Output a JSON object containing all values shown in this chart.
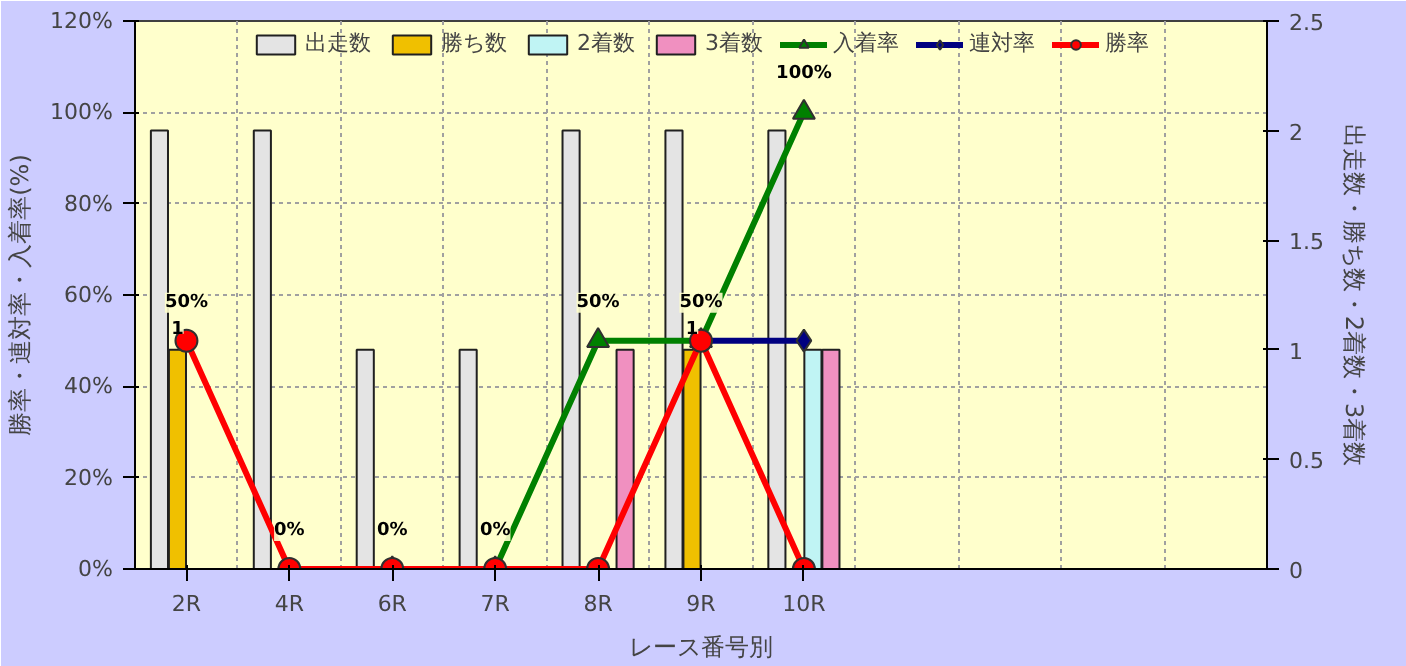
{
  "chart_data": {
    "type": "bar",
    "xlabel": "レース番号別",
    "ylabel": "勝率・連対率・入着率(%)",
    "y2label": "出走数・勝ち数・2着数・3着数",
    "categories": [
      "2R",
      "4R",
      "6R",
      "7R",
      "8R",
      "9R",
      "10R",
      null,
      null,
      null,
      null
    ],
    "ylim": [
      0,
      120
    ],
    "yticks": [
      {
        "value": 0,
        "label": "0%"
      },
      {
        "value": 20,
        "label": "20%"
      },
      {
        "value": 40,
        "label": "40%"
      },
      {
        "value": 60,
        "label": "60%"
      },
      {
        "value": 80,
        "label": "80%"
      },
      {
        "value": 100,
        "label": "100%"
      },
      {
        "value": 120,
        "label": "120%"
      }
    ],
    "y2lim": [
      0,
      2.5
    ],
    "y2ticks": [
      0,
      0.5,
      1,
      1.5,
      2,
      2.5
    ],
    "grid": true,
    "legend": "top",
    "series": [
      {
        "name": "出走数",
        "axis": "y2",
        "color": "#e4e4e4",
        "values": [
          2,
          2,
          1,
          1,
          2,
          2,
          2,
          null,
          null,
          null,
          null
        ]
      },
      {
        "name": "勝ち数",
        "axis": "y2",
        "color": "#f0c000",
        "values": [
          1,
          null,
          null,
          null,
          null,
          1,
          null,
          null,
          null,
          null,
          null
        ],
        "value_labels": [
          "1",
          null,
          null,
          null,
          null,
          "1",
          null,
          null,
          null,
          null,
          null
        ]
      },
      {
        "name": "2着数",
        "axis": "y2",
        "color": "#c0f4f4",
        "values": [
          null,
          null,
          null,
          null,
          null,
          null,
          1,
          null,
          null,
          null,
          null
        ]
      },
      {
        "name": "3着数",
        "axis": "y2",
        "color": "#f090c0",
        "values": [
          null,
          null,
          null,
          null,
          1,
          null,
          1,
          null,
          null,
          null,
          null
        ]
      },
      {
        "name": "入着率",
        "type": "line",
        "color": "#008000",
        "marker": "triangle",
        "values": [
          null,
          null,
          0,
          0,
          50,
          50,
          100,
          null,
          null,
          null,
          null
        ],
        "value_labels": [
          null,
          null,
          "0%",
          "0%",
          "50%",
          "50%",
          "100%",
          null,
          null,
          null,
          null
        ]
      },
      {
        "name": "連対率",
        "type": "line",
        "color": "#000080",
        "marker": "diamond",
        "values": [
          null,
          null,
          null,
          null,
          null,
          50,
          50,
          null,
          null,
          null,
          null
        ]
      },
      {
        "name": "勝率",
        "type": "line",
        "color": "#ff0000",
        "marker": "circle",
        "values": [
          50,
          0,
          0,
          0,
          0,
          50,
          0,
          null,
          null,
          null,
          null
        ],
        "value_labels": [
          "50%",
          "0%",
          null,
          null,
          null,
          null,
          null,
          null,
          null,
          null,
          null
        ]
      }
    ]
  }
}
